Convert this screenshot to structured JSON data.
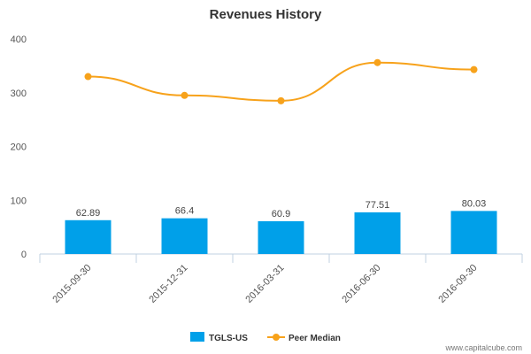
{
  "chart_data": {
    "type": "bar",
    "title": "Revenues History",
    "categories": [
      "2015-09-30",
      "2015-12-31",
      "2016-03-31",
      "2016-06-30",
      "2016-09-30"
    ],
    "series": [
      {
        "name": "TGLS-US",
        "type": "bar",
        "color": "#00a0e9",
        "values": [
          62.89,
          66.4,
          60.9,
          77.51,
          80.03
        ],
        "labels": [
          "62.89",
          "66.4",
          "60.9",
          "77.51",
          "80.03"
        ]
      },
      {
        "name": "Peer Median",
        "type": "line",
        "color": "#f7a21b",
        "values": [
          330,
          295,
          285,
          356,
          343
        ]
      }
    ],
    "ylim": [
      0,
      400
    ],
    "yticks": [
      0,
      100,
      200,
      300,
      400
    ],
    "ytick_labels": [
      "0",
      "100",
      "200",
      "300",
      "400"
    ],
    "grid": false,
    "legend_position": "bottom"
  },
  "watermark": "www.capitalcube.com"
}
